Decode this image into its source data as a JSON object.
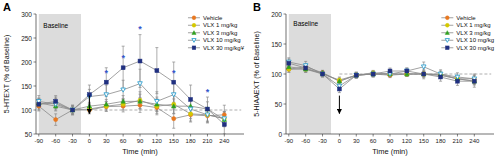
{
  "chart_data": [
    {
      "type": "line",
      "title": "A",
      "xlabel": "Time (min)",
      "ylabel": "5-HTEXT (% of Baseline)",
      "x": [
        -90,
        -60,
        -30,
        0,
        30,
        60,
        90,
        120,
        150,
        180,
        210,
        240
      ],
      "xlim": [
        -95,
        275
      ],
      "xticks": [
        -90,
        -60,
        -30,
        0,
        30,
        60,
        90,
        120,
        150,
        180,
        210,
        240
      ],
      "ylim": [
        50,
        300
      ],
      "yticks": [
        50,
        100,
        150,
        200,
        250,
        300
      ],
      "grid": false,
      "legend": "upper right",
      "series": [
        {
          "name": "Vehicle",
          "color": "#E87820",
          "marker": "circle",
          "values": [
            108,
            80,
            100,
            100,
            107,
            108,
            110,
            105,
            82,
            90,
            88,
            90
          ],
          "errors": [
            10,
            12,
            8,
            8,
            10,
            12,
            15,
            15,
            20,
            15,
            15,
            20
          ]
        },
        {
          "name": "VLX 1 mg/kg",
          "color": "#D4C800",
          "marker": "circle",
          "values": [
            112,
            115,
            100,
            102,
            108,
            112,
            120,
            108,
            112,
            92,
            90,
            82
          ],
          "errors": [
            10,
            12,
            8,
            8,
            10,
            12,
            18,
            15,
            20,
            15,
            15,
            15
          ]
        },
        {
          "name": "VLX 3 mg/kg",
          "color": "#30A020",
          "marker": "triangle-up",
          "values": [
            115,
            108,
            100,
            108,
            112,
            118,
            118,
            112,
            108,
            108,
            102,
            80
          ],
          "errors": [
            10,
            10,
            8,
            8,
            10,
            12,
            15,
            15,
            15,
            15,
            15,
            15
          ]
        },
        {
          "name": "VLX 10 mg/kg",
          "color": "#30A0D0",
          "marker": "triangle-down-open",
          "values": [
            118,
            112,
            100,
            128,
            132,
            142,
            155,
            118,
            132,
            102,
            90,
            82
          ],
          "errors": [
            12,
            12,
            10,
            15,
            20,
            20,
            30,
            20,
            25,
            20,
            15,
            15
          ]
        },
        {
          "name": "VLX 30 mg/kg¥",
          "color": "#203080",
          "marker": "square",
          "values": [
            112,
            118,
            100,
            132,
            158,
            188,
            202,
            182,
            158,
            122,
            102,
            70
          ],
          "errors": [
            12,
            12,
            10,
            20,
            30,
            45,
            55,
            48,
            42,
            30,
            25,
            20
          ]
        }
      ],
      "shaded_x": [
        -90,
        -15
      ],
      "reference_line": {
        "y": 100,
        "x": [
          0,
          270
        ]
      },
      "arrow_x": 0,
      "annotations": [
        {
          "text": "Baseline",
          "x": -82,
          "y": 270
        },
        {
          "text": "*",
          "x": 30,
          "y": 178,
          "color": "#3355CC"
        },
        {
          "text": "*",
          "x": 60,
          "y": 208,
          "color": "#3355CC"
        },
        {
          "text": "*",
          "x": 90,
          "y": 268,
          "color": "#3355CC"
        },
        {
          "text": "*",
          "x": 150,
          "y": 178,
          "color": "#3355CC"
        },
        {
          "text": "*",
          "x": 210,
          "y": 138,
          "color": "#3355CC"
        }
      ]
    },
    {
      "type": "line",
      "title": "B",
      "xlabel": "Time (min)",
      "ylabel": "5-HIAAEXT (% of Baseline)",
      "x": [
        -90,
        -60,
        -30,
        0,
        30,
        60,
        90,
        120,
        150,
        180,
        210,
        240
      ],
      "xlim": [
        -95,
        275
      ],
      "xticks": [
        -90,
        -60,
        -30,
        0,
        30,
        60,
        90,
        120,
        150,
        180,
        210,
        240
      ],
      "ylim": [
        0,
        200
      ],
      "yticks": [
        0,
        50,
        100,
        150,
        200
      ],
      "grid": false,
      "legend": "upper right",
      "series": [
        {
          "name": "Vehicle",
          "color": "#E87820",
          "marker": "circle",
          "values": [
            108,
            112,
            102,
            88,
            98,
            100,
            98,
            100,
            100,
            98,
            92,
            92
          ],
          "errors": [
            5,
            5,
            4,
            5,
            4,
            4,
            4,
            4,
            5,
            5,
            5,
            6
          ]
        },
        {
          "name": "VLX 1 mg/kg",
          "color": "#D4C800",
          "marker": "circle",
          "values": [
            108,
            108,
            100,
            90,
            98,
            102,
            100,
            100,
            100,
            98,
            92,
            88
          ],
          "errors": [
            5,
            5,
            4,
            5,
            4,
            4,
            4,
            4,
            5,
            5,
            5,
            6
          ]
        },
        {
          "name": "VLX 3 mg/kg",
          "color": "#30A020",
          "marker": "triangle-up",
          "values": [
            112,
            108,
            102,
            88,
            98,
            100,
            100,
            100,
            100,
            100,
            92,
            88
          ],
          "errors": [
            5,
            5,
            4,
            5,
            4,
            4,
            4,
            4,
            5,
            5,
            5,
            6
          ]
        },
        {
          "name": "VLX 10 mg/kg",
          "color": "#30A0D0",
          "marker": "triangle-down-open",
          "values": [
            120,
            114,
            100,
            80,
            98,
            100,
            100,
            105,
            112,
            100,
            95,
            92
          ],
          "errors": [
            7,
            7,
            5,
            6,
            5,
            5,
            5,
            5,
            8,
            7,
            7,
            8
          ]
        },
        {
          "name": "VLX 30 mg/kg",
          "color": "#203080",
          "marker": "square",
          "values": [
            118,
            110,
            100,
            75,
            98,
            100,
            105,
            105,
            100,
            95,
            88,
            88
          ],
          "errors": [
            7,
            7,
            5,
            6,
            5,
            5,
            5,
            5,
            8,
            7,
            7,
            10
          ]
        }
      ],
      "shaded_x": [
        -90,
        -15
      ],
      "reference_line": {
        "y": 100,
        "x": [
          0,
          270
        ]
      },
      "arrow_x": 0,
      "annotations": [
        {
          "text": "Baseline",
          "x": -82,
          "y": 180
        }
      ]
    }
  ]
}
